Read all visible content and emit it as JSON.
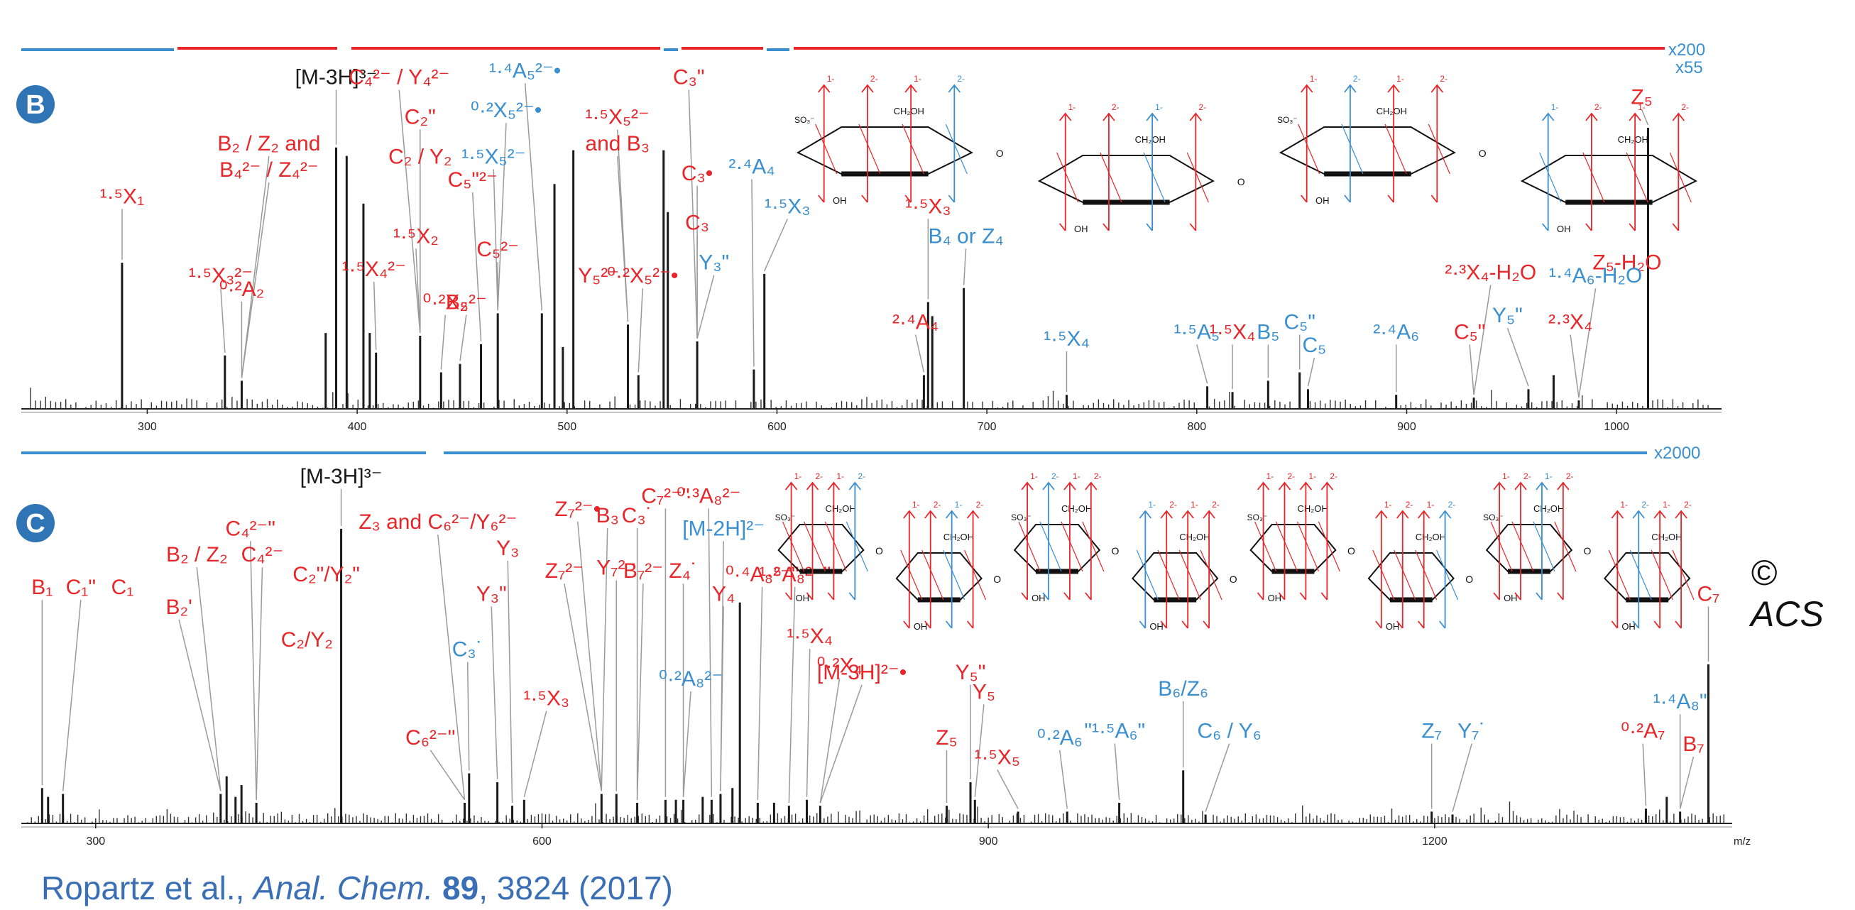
{
  "colors": {
    "red": "#e8262a",
    "blue": "#3a8fd0",
    "black": "#1a1a1a",
    "grey": "#8a8a8a",
    "badge": "#2f75b5"
  },
  "copyright": "© ACS",
  "citation": {
    "authors": "Ropartz et al.,",
    "journal": "Anal. Chem.",
    "volume": "89",
    "rest": ", 3824 (2017)"
  },
  "chart_data": [
    {
      "panel": "B",
      "type": "bar",
      "xlim": [
        240,
        1050
      ],
      "xticks": [
        300,
        400,
        500,
        600,
        700,
        800,
        900,
        1000
      ],
      "scale_labels": [
        "x200",
        "x55"
      ],
      "structure": "tetrasaccharide structure diagram with red and blue fragmentation cleavage arrows",
      "peaks": [
        {
          "x": 288,
          "h": 0.52,
          "c": "black"
        },
        {
          "x": 337,
          "h": 0.19,
          "c": "black"
        },
        {
          "x": 345,
          "h": 0.1,
          "c": "black"
        },
        {
          "x": 385,
          "h": 0.27,
          "c": "black"
        },
        {
          "x": 390,
          "h": 0.93,
          "c": "black"
        },
        {
          "x": 395,
          "h": 0.9,
          "c": "black"
        },
        {
          "x": 403,
          "h": 0.73,
          "c": "black"
        },
        {
          "x": 406,
          "h": 0.27,
          "c": "black"
        },
        {
          "x": 409,
          "h": 0.2,
          "c": "black"
        },
        {
          "x": 430,
          "h": 0.26,
          "c": "black"
        },
        {
          "x": 440,
          "h": 0.13,
          "c": "black"
        },
        {
          "x": 449,
          "h": 0.16,
          "c": "black"
        },
        {
          "x": 459,
          "h": 0.23,
          "c": "black"
        },
        {
          "x": 467,
          "h": 0.34,
          "c": "black"
        },
        {
          "x": 488,
          "h": 0.34,
          "c": "black"
        },
        {
          "x": 494,
          "h": 0.8,
          "c": "black"
        },
        {
          "x": 498,
          "h": 0.22,
          "c": "black"
        },
        {
          "x": 503,
          "h": 0.92,
          "c": "black"
        },
        {
          "x": 529,
          "h": 0.3,
          "c": "black"
        },
        {
          "x": 534,
          "h": 0.12,
          "c": "black"
        },
        {
          "x": 546,
          "h": 0.92,
          "c": "black"
        },
        {
          "x": 548,
          "h": 0.7,
          "c": "black"
        },
        {
          "x": 562,
          "h": 0.24,
          "c": "black"
        },
        {
          "x": 589,
          "h": 0.14,
          "c": "black"
        },
        {
          "x": 594,
          "h": 0.48,
          "c": "black"
        },
        {
          "x": 670,
          "h": 0.12,
          "c": "black"
        },
        {
          "x": 672,
          "h": 0.38,
          "c": "black"
        },
        {
          "x": 674,
          "h": 0.33,
          "c": "black"
        },
        {
          "x": 689,
          "h": 0.43,
          "c": "black"
        },
        {
          "x": 738,
          "h": 0.05,
          "c": "black"
        },
        {
          "x": 805,
          "h": 0.08,
          "c": "black"
        },
        {
          "x": 817,
          "h": 0.06,
          "c": "black"
        },
        {
          "x": 834,
          "h": 0.1,
          "c": "black"
        },
        {
          "x": 849,
          "h": 0.13,
          "c": "black"
        },
        {
          "x": 853,
          "h": 0.07,
          "c": "black"
        },
        {
          "x": 895,
          "h": 0.05,
          "c": "black"
        },
        {
          "x": 932,
          "h": 0.04,
          "c": "black"
        },
        {
          "x": 958,
          "h": 0.07,
          "c": "black"
        },
        {
          "x": 970,
          "h": 0.12,
          "c": "black"
        },
        {
          "x": 982,
          "h": 0.03,
          "c": "black"
        },
        {
          "x": 1015,
          "h": 1.0,
          "c": "black"
        }
      ],
      "labels": [
        {
          "text": "[M-3H]³⁻",
          "c": "black",
          "x": 390,
          "y": 0.96
        },
        {
          "text": "C₄²⁻ / Y₄²⁻",
          "c": "red",
          "x": 420,
          "y": 0.96
        },
        {
          "text": "¹·⁴A₅²⁻•",
          "c": "blue",
          "x": 480,
          "y": 0.98
        },
        {
          "text": "C₃\"",
          "c": "red",
          "x": 558,
          "y": 0.96
        },
        {
          "text": "Z₅",
          "c": "red",
          "x": 1012,
          "y": 0.9
        },
        {
          "text": "⁰·²X₅²⁻•",
          "c": "blue",
          "x": 471,
          "y": 0.86
        },
        {
          "text": "C₂\"",
          "c": "red",
          "x": 430,
          "y": 0.84
        },
        {
          "text": "¹·⁵X₅²⁻",
          "c": "red",
          "x": 524,
          "y": 0.84
        },
        {
          "text": "B₂ / Z₂ and",
          "c": "red",
          "x": 358,
          "y": 0.76
        },
        {
          "text": "B₄²⁻ / Z₄²⁻",
          "c": "red",
          "x": 358,
          "y": 0.68
        },
        {
          "text": "and B₃",
          "c": "red",
          "x": 524,
          "y": 0.76
        },
        {
          "text": "C₂ / Y₂",
          "c": "red",
          "x": 430,
          "y": 0.72
        },
        {
          "text": "¹·⁵X₅²⁻",
          "c": "blue",
          "x": 465,
          "y": 0.72
        },
        {
          "text": "C₅\"²⁻",
          "c": "red",
          "x": 455,
          "y": 0.65
        },
        {
          "text": "C₃•",
          "c": "red",
          "x": 562,
          "y": 0.67
        },
        {
          "text": "²·⁴A₄",
          "c": "blue",
          "x": 588,
          "y": 0.69
        },
        {
          "text": "¹·⁵X₁",
          "c": "red",
          "x": 288,
          "y": 0.6
        },
        {
          "text": "¹·⁵X₃",
          "c": "blue",
          "x": 605,
          "y": 0.57
        },
        {
          "text": "¹·⁵X₃",
          "c": "red",
          "x": 672,
          "y": 0.57
        },
        {
          "text": "C₃",
          "c": "red",
          "x": 562,
          "y": 0.52
        },
        {
          "text": "¹·⁵X₂",
          "c": "red",
          "x": 428,
          "y": 0.48
        },
        {
          "text": "C₅²⁻",
          "c": "red",
          "x": 467,
          "y": 0.44
        },
        {
          "text": "B₄ or Z₄",
          "c": "blue",
          "x": 690,
          "y": 0.48
        },
        {
          "text": "Y₃\"",
          "c": "blue",
          "x": 570,
          "y": 0.4
        },
        {
          "text": "¹·⁵X₄²⁻",
          "c": "red",
          "x": 408,
          "y": 0.38
        },
        {
          "text": "¹·⁵X₃²⁻",
          "c": "red",
          "x": 335,
          "y": 0.36
        },
        {
          "text": "Y₅²⁻",
          "c": "red",
          "x": 515,
          "y": 0.36
        },
        {
          "text": "⁰·²X₅²⁻•",
          "c": "red",
          "x": 536,
          "y": 0.36
        },
        {
          "text": "²·³X₄-H₂O",
          "c": "red",
          "x": 940,
          "y": 0.37
        },
        {
          "text": "Z₅-H₂O",
          "c": "red",
          "x": 1005,
          "y": 0.4
        },
        {
          "text": "¹·⁴A₆-H₂O",
          "c": "blue",
          "x": 990,
          "y": 0.36
        },
        {
          "text": "⁰·²A₂",
          "c": "red",
          "x": 345,
          "y": 0.32
        },
        {
          "text": "⁰·²X₂",
          "c": "red",
          "x": 442,
          "y": 0.28
        },
        {
          "text": "B₅²⁻",
          "c": "red",
          "x": 452,
          "y": 0.28
        },
        {
          "text": "²·⁴A₄",
          "c": "red",
          "x": 666,
          "y": 0.22
        },
        {
          "text": "²·³X₄",
          "c": "red",
          "x": 978,
          "y": 0.22
        },
        {
          "text": "Y₅\"",
          "c": "blue",
          "x": 948,
          "y": 0.24
        },
        {
          "text": "¹·⁵X₄",
          "c": "blue",
          "x": 738,
          "y": 0.17
        },
        {
          "text": "¹·⁵A₅",
          "c": "blue",
          "x": 800,
          "y": 0.19
        },
        {
          "text": "¹·⁵X₄",
          "c": "red",
          "x": 817,
          "y": 0.19
        },
        {
          "text": "B₅",
          "c": "blue",
          "x": 834,
          "y": 0.19
        },
        {
          "text": "C₅\"",
          "c": "blue",
          "x": 849,
          "y": 0.22
        },
        {
          "text": "C₅",
          "c": "blue",
          "x": 856,
          "y": 0.15
        },
        {
          "text": "²·⁴A₆",
          "c": "blue",
          "x": 895,
          "y": 0.19
        },
        {
          "text": "C₅\"",
          "c": "red",
          "x": 930,
          "y": 0.19
        }
      ]
    },
    {
      "panel": "C",
      "type": "bar",
      "xlim": [
        250,
        1400
      ],
      "xticks": [
        300,
        600,
        900,
        1200
      ],
      "xlabel": "m/z",
      "scale_labels": [
        "x2000"
      ],
      "structure": "octasaccharide structure diagram with red and blue fragmentation cleavage arrows",
      "peaks": [
        {
          "x": 264,
          "h": 0.12,
          "c": "black"
        },
        {
          "x": 268,
          "h": 0.09,
          "c": "black"
        },
        {
          "x": 278,
          "h": 0.1,
          "c": "black"
        },
        {
          "x": 384,
          "h": 0.1,
          "c": "black"
        },
        {
          "x": 388,
          "h": 0.16,
          "c": "black"
        },
        {
          "x": 394,
          "h": 0.09,
          "c": "black"
        },
        {
          "x": 398,
          "h": 0.13,
          "c": "black"
        },
        {
          "x": 408,
          "h": 0.07,
          "c": "black"
        },
        {
          "x": 465,
          "h": 1.0,
          "c": "black"
        },
        {
          "x": 548,
          "h": 0.07,
          "c": "black"
        },
        {
          "x": 551,
          "h": 0.17,
          "c": "black"
        },
        {
          "x": 570,
          "h": 0.14,
          "c": "black"
        },
        {
          "x": 580,
          "h": 0.06,
          "c": "black"
        },
        {
          "x": 588,
          "h": 0.08,
          "c": "black"
        },
        {
          "x": 640,
          "h": 0.1,
          "c": "black"
        },
        {
          "x": 650,
          "h": 0.1,
          "c": "black"
        },
        {
          "x": 664,
          "h": 0.07,
          "c": "black"
        },
        {
          "x": 683,
          "h": 0.08,
          "c": "black"
        },
        {
          "x": 690,
          "h": 0.08,
          "c": "black"
        },
        {
          "x": 695,
          "h": 0.08,
          "c": "black"
        },
        {
          "x": 708,
          "h": 0.09,
          "c": "black"
        },
        {
          "x": 714,
          "h": 0.08,
          "c": "black"
        },
        {
          "x": 720,
          "h": 0.1,
          "c": "black"
        },
        {
          "x": 728,
          "h": 0.12,
          "c": "black"
        },
        {
          "x": 733,
          "h": 0.75,
          "c": "black"
        },
        {
          "x": 745,
          "h": 0.07,
          "c": "black"
        },
        {
          "x": 756,
          "h": 0.07,
          "c": "black"
        },
        {
          "x": 766,
          "h": 0.06,
          "c": "black"
        },
        {
          "x": 778,
          "h": 0.08,
          "c": "black"
        },
        {
          "x": 787,
          "h": 0.06,
          "c": "black"
        },
        {
          "x": 872,
          "h": 0.06,
          "c": "black"
        },
        {
          "x": 888,
          "h": 0.14,
          "c": "black"
        },
        {
          "x": 891,
          "h": 0.08,
          "c": "black"
        },
        {
          "x": 920,
          "h": 0.04,
          "c": "black"
        },
        {
          "x": 953,
          "h": 0.04,
          "c": "black"
        },
        {
          "x": 988,
          "h": 0.07,
          "c": "black"
        },
        {
          "x": 1031,
          "h": 0.18,
          "c": "black"
        },
        {
          "x": 1046,
          "h": 0.03,
          "c": "black"
        },
        {
          "x": 1198,
          "h": 0.04,
          "c": "black"
        },
        {
          "x": 1212,
          "h": 0.03,
          "c": "black"
        },
        {
          "x": 1342,
          "h": 0.05,
          "c": "black"
        },
        {
          "x": 1356,
          "h": 0.09,
          "c": "black"
        },
        {
          "x": 1365,
          "h": 0.04,
          "c": "black"
        },
        {
          "x": 1384,
          "h": 0.54,
          "c": "black"
        }
      ],
      "labels": [
        {
          "text": "[M-3H]³⁻",
          "c": "black",
          "x": 465,
          "y": 1.02
        },
        {
          "text": "C₇²⁻\"",
          "c": "red",
          "x": 683,
          "y": 0.96
        },
        {
          "text": "⁰·³A₈²⁻",
          "c": "red",
          "x": 712,
          "y": 0.96
        },
        {
          "text": "Z₇²⁻•",
          "c": "red",
          "x": 624,
          "y": 0.92
        },
        {
          "text": "B₃",
          "c": "red",
          "x": 644,
          "y": 0.9
        },
        {
          "text": "C₃˙",
          "c": "red",
          "x": 664,
          "y": 0.9
        },
        {
          "text": "C₄²⁻\"",
          "c": "red",
          "x": 404,
          "y": 0.86
        },
        {
          "text": "[M-2H]²⁻",
          "c": "blue",
          "x": 722,
          "y": 0.86
        },
        {
          "text": "Z₃ and C₆²⁻/Y₆²⁻",
          "c": "red",
          "x": 530,
          "y": 0.88
        },
        {
          "text": "Y₃",
          "c": "red",
          "x": 577,
          "y": 0.8
        },
        {
          "text": "B₂ / Z₂",
          "c": "red",
          "x": 368,
          "y": 0.78
        },
        {
          "text": "C₄²⁻",
          "c": "red",
          "x": 412,
          "y": 0.78
        },
        {
          "text": "Z₇²⁻",
          "c": "red",
          "x": 615,
          "y": 0.73
        },
        {
          "text": "Y₇²⁻",
          "c": "red",
          "x": 650,
          "y": 0.74
        },
        {
          "text": "B₇²⁻",
          "c": "red",
          "x": 668,
          "y": 0.73
        },
        {
          "text": "Z₄˙",
          "c": "red",
          "x": 695,
          "y": 0.73
        },
        {
          "text": "Y₄",
          "c": "red",
          "x": 722,
          "y": 0.66
        },
        {
          "text": "⁰·⁴A₈²⁻\"",
          "c": "red",
          "x": 748,
          "y": 0.72
        },
        {
          "text": "¹·⁵A₈²⁻\"",
          "c": "red",
          "x": 770,
          "y": 0.72
        },
        {
          "text": "C₂\"/Y₂\"",
          "c": "red",
          "x": 455,
          "y": 0.72
        },
        {
          "text": "Y₃\"",
          "c": "red",
          "x": 566,
          "y": 0.66
        },
        {
          "text": "B₁",
          "c": "red",
          "x": 264,
          "y": 0.68
        },
        {
          "text": "C₁\"",
          "c": "red",
          "x": 290,
          "y": 0.68
        },
        {
          "text": "C₁",
          "c": "red",
          "x": 318,
          "y": 0.68
        },
        {
          "text": "B₂'",
          "c": "red",
          "x": 356,
          "y": 0.62
        },
        {
          "text": "C₇",
          "c": "red",
          "x": 1384,
          "y": 0.66
        },
        {
          "text": "C₃˙",
          "c": "blue",
          "x": 550,
          "y": 0.49
        },
        {
          "text": "¹·⁵X₄",
          "c": "red",
          "x": 780,
          "y": 0.53
        },
        {
          "text": "C₂/Y₂",
          "c": "red",
          "x": 442,
          "y": 0.52
        },
        {
          "text": "⁰·²A₈²⁻",
          "c": "blue",
          "x": 700,
          "y": 0.4
        },
        {
          "text": "⁰·²X₄",
          "c": "red",
          "x": 800,
          "y": 0.44
        },
        {
          "text": "[M-3H]²⁻•",
          "c": "red",
          "x": 815,
          "y": 0.42
        },
        {
          "text": "Y₅\"",
          "c": "red",
          "x": 888,
          "y": 0.42
        },
        {
          "text": "Y₅",
          "c": "red",
          "x": 897,
          "y": 0.36
        },
        {
          "text": "B₆/Z₆",
          "c": "blue",
          "x": 1031,
          "y": 0.37
        },
        {
          "text": "¹·⁵X₃",
          "c": "red",
          "x": 603,
          "y": 0.34
        },
        {
          "text": "C₆²⁻\"",
          "c": "red",
          "x": 525,
          "y": 0.22
        },
        {
          "text": "Z₅",
          "c": "red",
          "x": 872,
          "y": 0.22
        },
        {
          "text": "¹·⁵X₅",
          "c": "red",
          "x": 906,
          "y": 0.16
        },
        {
          "text": "⁰·²A₆",
          "c": "blue",
          "x": 948,
          "y": 0.22
        },
        {
          "text": "\"¹·⁵A₆\"",
          "c": "blue",
          "x": 985,
          "y": 0.24
        },
        {
          "text": "C₆ / Y₆",
          "c": "blue",
          "x": 1062,
          "y": 0.24
        },
        {
          "text": "Z₇",
          "c": "blue",
          "x": 1198,
          "y": 0.24
        },
        {
          "text": "Y₇˙",
          "c": "blue",
          "x": 1225,
          "y": 0.24
        },
        {
          "text": "¹·⁴A₈\"",
          "c": "blue",
          "x": 1365,
          "y": 0.33
        },
        {
          "text": "⁰·²A₇",
          "c": "red",
          "x": 1340,
          "y": 0.24
        },
        {
          "text": "B₇",
          "c": "red",
          "x": 1374,
          "y": 0.2
        }
      ]
    }
  ]
}
